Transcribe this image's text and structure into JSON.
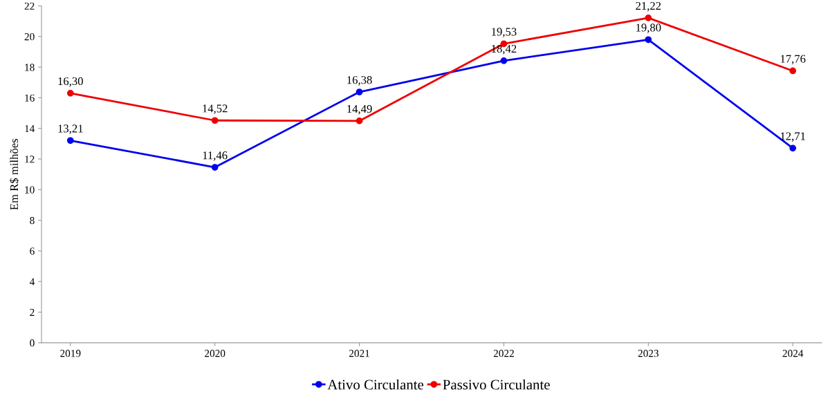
{
  "chart_data": {
    "type": "line",
    "ylabel": "Em R$ milhões",
    "categories": [
      "2019",
      "2020",
      "2021",
      "2022",
      "2023",
      "2024"
    ],
    "series": [
      {
        "name": "Ativo Circulante",
        "color": "#0000ee",
        "values": [
          13.21,
          11.46,
          16.38,
          18.42,
          19.8,
          12.71
        ],
        "value_labels": [
          "13,21",
          "11,46",
          "16,38",
          "18,42",
          "19,80",
          "12,71"
        ]
      },
      {
        "name": "Passivo Circulante",
        "color": "#ee0000",
        "values": [
          16.3,
          14.52,
          14.49,
          19.53,
          21.22,
          17.76
        ],
        "value_labels": [
          "16,30",
          "14,52",
          "14,49",
          "19,53",
          "21,22",
          "17,76"
        ]
      }
    ],
    "ylim": [
      0,
      22
    ],
    "yticks": [
      0,
      2,
      4,
      6,
      8,
      10,
      12,
      14,
      16,
      18,
      20,
      22
    ],
    "grid": false,
    "legend": "bottom",
    "marker": "circle",
    "line_style": "solid"
  }
}
